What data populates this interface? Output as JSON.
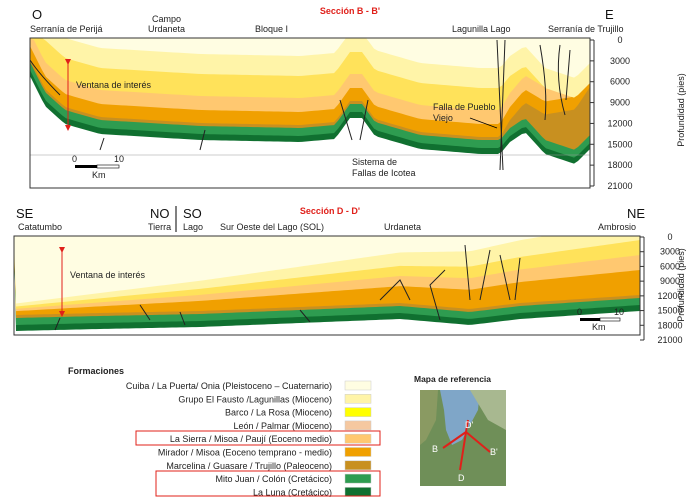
{
  "section_bb": {
    "title": "Sección B - B'",
    "left": "O",
    "right": "E",
    "places": [
      "Serranía de Perijá",
      "Campo",
      "Urdaneta",
      "Bloque I",
      "Lagunilla Lago",
      "Serranía de Trujillo"
    ],
    "depth_axis_label": "Profundidad (pies)",
    "depth_ticks": [
      "0",
      "3000",
      "6000",
      "9000",
      "12000",
      "15000",
      "18000",
      "21000"
    ],
    "annotations": [
      "Ventana de interés",
      "Falla de Pueblo",
      "Viejo",
      "Sistema de",
      "Fallas de Icotea"
    ],
    "scale": [
      "0",
      "10",
      "Km"
    ]
  },
  "section_dd": {
    "title": "Sección D - D'",
    "left": "SE",
    "mid_left": "NO",
    "mid_right": "SO",
    "right": "NE",
    "places": [
      "Catatumbo",
      "Tierra",
      "Lago",
      "Sur Oeste del Lago (SOL)",
      "Urdaneta",
      "Ambrosio"
    ],
    "depth_axis_label": "Profundidad (pies)",
    "depth_ticks": [
      "0",
      "3000",
      "6000",
      "9000",
      "12000",
      "15000",
      "18000",
      "21000"
    ],
    "annotations": [
      "Ventana de interés"
    ],
    "scale": [
      "0",
      "10",
      "Km"
    ]
  },
  "legend": {
    "title": "Formaciones",
    "items": [
      "Cuiba / La Puerta/ Onia (Pleistoceno – Cuaternario)",
      "Grupo El Fausto /Lagunillas (Mioceno)",
      "Barco / La Rosa (Mioceno)",
      "León / Palmar (Mioceno)",
      "La Sierra / Misoa / Paují (Eoceno medio)",
      "Mirador / Misoa (Eoceno temprano - medio)",
      "Marcelina / Guasare / Trujillo (Paleoceno)",
      "Mito Juan / Colón (Cretácico)",
      "La Luna (Cretácico)"
    ]
  },
  "map": {
    "title": "Mapa de referencia",
    "labels": [
      "D'",
      "B",
      "B'",
      "D"
    ]
  }
}
